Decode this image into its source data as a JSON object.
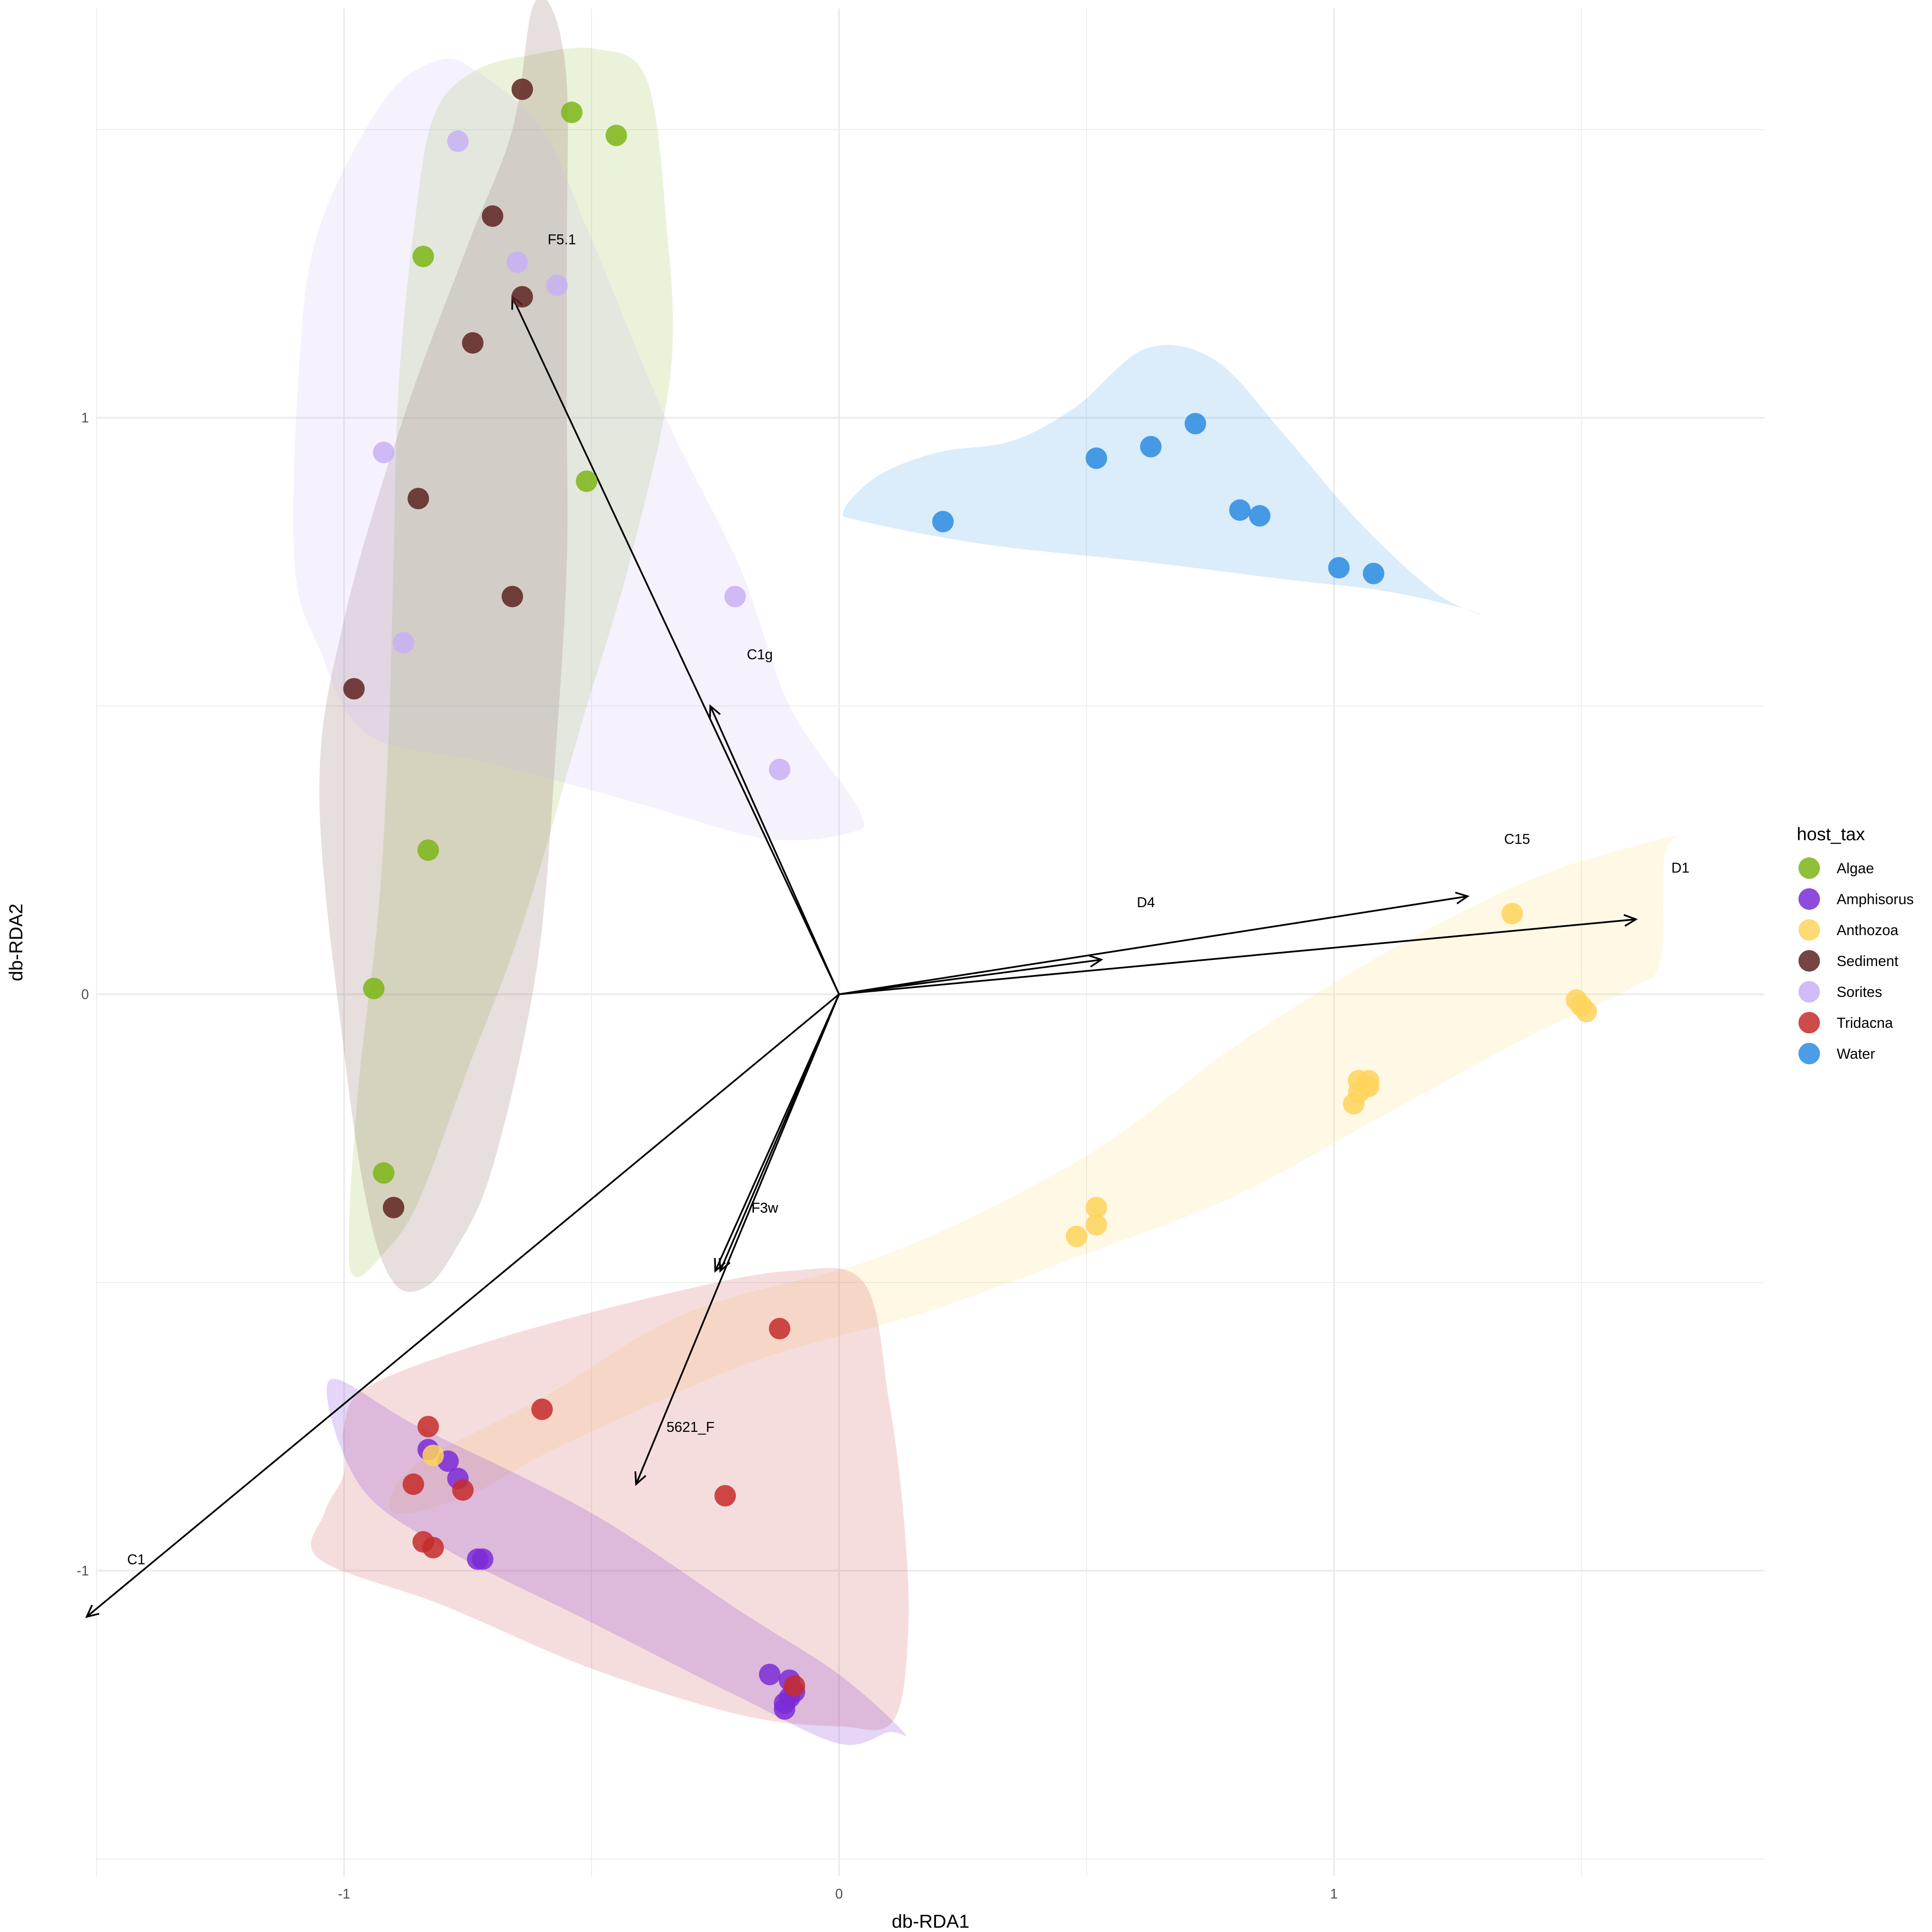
{
  "chart_data": {
    "type": "scatter",
    "title": "",
    "xlabel": "db-RDA1",
    "ylabel": "db-RDA2",
    "xlim": [
      -1.5,
      1.87
    ],
    "ylim": [
      -1.53,
      1.71
    ],
    "x_ticks": [
      -1,
      0,
      1
    ],
    "x_tick_labels": [
      "-1",
      "0",
      "1"
    ],
    "y_ticks": [
      -1,
      0,
      1
    ],
    "y_tick_labels": [
      "-1",
      "0",
      "1"
    ],
    "grid": true,
    "legend": {
      "title": "host_tax",
      "placement": "right"
    },
    "series": [
      {
        "name": "Algae",
        "color": "#7cb518",
        "points": [
          [
            -0.54,
            1.53
          ],
          [
            -0.45,
            1.49
          ],
          [
            -0.84,
            1.28
          ],
          [
            -0.51,
            0.89
          ],
          [
            -0.83,
            0.25
          ],
          [
            -0.94,
            0.01
          ],
          [
            -0.92,
            -0.31
          ]
        ]
      },
      {
        "name": "Amphisorus",
        "color": "#7b2bd6",
        "points": [
          [
            -0.83,
            -0.79
          ],
          [
            -0.79,
            -0.81
          ],
          [
            -0.77,
            -0.84
          ],
          [
            -0.73,
            -0.98
          ],
          [
            -0.72,
            -0.98
          ],
          [
            -0.14,
            -1.18
          ],
          [
            -0.1,
            -1.19
          ],
          [
            -0.1,
            -1.22
          ],
          [
            -0.11,
            -1.23
          ],
          [
            -0.11,
            -1.24
          ],
          [
            -0.09,
            -1.21
          ]
        ]
      },
      {
        "name": "Anthozoa",
        "color": "#fed45c",
        "points": [
          [
            -0.82,
            -0.8
          ],
          [
            0.48,
            -0.42
          ],
          [
            0.52,
            -0.4
          ],
          [
            0.52,
            -0.37
          ],
          [
            1.04,
            -0.19
          ],
          [
            1.05,
            -0.17
          ],
          [
            1.07,
            -0.16
          ],
          [
            1.07,
            -0.15
          ],
          [
            1.05,
            -0.15
          ],
          [
            1.36,
            0.14
          ],
          [
            1.49,
            -0.01
          ],
          [
            1.5,
            -0.02
          ],
          [
            1.51,
            -0.03
          ]
        ]
      },
      {
        "name": "Sediment",
        "color": "#5e2320",
        "points": [
          [
            -0.64,
            1.57
          ],
          [
            -0.7,
            1.35
          ],
          [
            -0.64,
            1.21
          ],
          [
            -0.74,
            1.13
          ],
          [
            -0.85,
            0.86
          ],
          [
            -0.66,
            0.69
          ],
          [
            -0.98,
            0.53
          ],
          [
            -0.9,
            -0.37
          ]
        ]
      },
      {
        "name": "Sorites",
        "color": "#c8b0f5",
        "points": [
          [
            -0.77,
            1.48
          ],
          [
            -0.65,
            1.27
          ],
          [
            -0.57,
            1.23
          ],
          [
            -0.92,
            0.94
          ],
          [
            -0.88,
            0.61
          ],
          [
            -0.21,
            0.69
          ],
          [
            -0.12,
            0.39
          ]
        ]
      },
      {
        "name": "Tridacna",
        "color": "#c62b2c",
        "points": [
          [
            -0.12,
            -0.58
          ],
          [
            -0.6,
            -0.72
          ],
          [
            -0.83,
            -0.75
          ],
          [
            -0.86,
            -0.85
          ],
          [
            -0.76,
            -0.86
          ],
          [
            -0.23,
            -0.87
          ],
          [
            -0.84,
            -0.95
          ],
          [
            -0.82,
            -0.96
          ],
          [
            -0.09,
            -1.2
          ]
        ]
      },
      {
        "name": "Water",
        "color": "#2c8ce0",
        "points": [
          [
            0.72,
            0.99
          ],
          [
            0.63,
            0.95
          ],
          [
            0.52,
            0.93
          ],
          [
            0.81,
            0.84
          ],
          [
            0.85,
            0.83
          ],
          [
            0.21,
            0.82
          ],
          [
            1.01,
            0.74
          ],
          [
            1.08,
            0.73
          ]
        ]
      }
    ],
    "vectors": [
      {
        "label": "F5.1",
        "end": [
          -0.66,
          1.21
        ],
        "label_pos": [
          -0.56,
          1.31
        ]
      },
      {
        "label": "C1g",
        "end": [
          -0.26,
          0.5
        ],
        "label_pos": [
          -0.16,
          0.59
        ]
      },
      {
        "label": "C15",
        "end": [
          1.27,
          0.17
        ],
        "label_pos": [
          1.37,
          0.27
        ]
      },
      {
        "label": "D1",
        "end": [
          1.61,
          0.13
        ],
        "label_pos": [
          1.7,
          0.22
        ]
      },
      {
        "label": "D4",
        "end": [
          0.53,
          0.06
        ],
        "label_pos": [
          0.62,
          0.16
        ]
      },
      {
        "label": "F3w",
        "end": [
          -0.25,
          -0.48
        ],
        "label_pos": [
          -0.15,
          -0.37
        ]
      },
      {
        "label": "F3w",
        "end": [
          -0.24,
          -0.48
        ],
        "label_pos": [
          -0.15,
          -0.37
        ]
      },
      {
        "label": "5621_F",
        "end": [
          -0.41,
          -0.85
        ],
        "label_pos": [
          -0.3,
          -0.75
        ]
      },
      {
        "label": "C1",
        "end": [
          -1.52,
          -1.08
        ],
        "label_pos": [
          -1.42,
          -0.98
        ]
      }
    ],
    "regions": [
      {
        "group": "Algae",
        "color": "#7cb518",
        "opacity": 0.16,
        "outline": [
          [
            -0.49,
            1.64
          ],
          [
            -0.39,
            1.59
          ],
          [
            -0.35,
            1.35
          ],
          [
            -0.34,
            1.08
          ],
          [
            -0.42,
            0.76
          ],
          [
            -0.52,
            0.47
          ],
          [
            -0.64,
            0.12
          ],
          [
            -0.75,
            -0.13
          ],
          [
            -0.85,
            -0.36
          ],
          [
            -0.92,
            -0.45
          ],
          [
            -0.98,
            -0.49
          ],
          [
            -0.99,
            -0.4
          ],
          [
            -0.97,
            -0.15
          ],
          [
            -0.93,
            0.15
          ],
          [
            -0.91,
            0.45
          ],
          [
            -0.9,
            0.75
          ],
          [
            -0.89,
            1.05
          ],
          [
            -0.86,
            1.32
          ],
          [
            -0.82,
            1.52
          ],
          [
            -0.74,
            1.6
          ],
          [
            -0.62,
            1.63
          ]
        ]
      },
      {
        "group": "Sediment",
        "color": "#5e2320",
        "opacity": 0.15,
        "outline": [
          [
            -0.58,
            1.71
          ],
          [
            -0.55,
            1.58
          ],
          [
            -0.55,
            1.3
          ],
          [
            -0.55,
            1.0
          ],
          [
            -0.55,
            0.75
          ],
          [
            -0.57,
            0.45
          ],
          [
            -0.61,
            0.05
          ],
          [
            -0.7,
            -0.3
          ],
          [
            -0.78,
            -0.45
          ],
          [
            -0.84,
            -0.51
          ],
          [
            -0.9,
            -0.5
          ],
          [
            -0.95,
            -0.38
          ],
          [
            -1.0,
            -0.1
          ],
          [
            -1.05,
            0.35
          ],
          [
            -1.0,
            0.65
          ],
          [
            -0.88,
            1.0
          ],
          [
            -0.75,
            1.3
          ],
          [
            -0.66,
            1.5
          ],
          [
            -0.62,
            1.71
          ]
        ]
      },
      {
        "group": "Sorites",
        "color": "#c8b0f5",
        "opacity": 0.18,
        "outline": [
          [
            -0.81,
            1.62
          ],
          [
            -0.73,
            1.6
          ],
          [
            -0.6,
            1.5
          ],
          [
            -0.5,
            1.31
          ],
          [
            -0.35,
            1.0
          ],
          [
            -0.2,
            0.74
          ],
          [
            -0.1,
            0.5
          ],
          [
            0.04,
            0.32
          ],
          [
            0.02,
            0.28
          ],
          [
            -0.15,
            0.27
          ],
          [
            -0.4,
            0.33
          ],
          [
            -0.7,
            0.4
          ],
          [
            -0.95,
            0.45
          ],
          [
            -1.05,
            0.6
          ],
          [
            -1.1,
            0.75
          ],
          [
            -1.09,
            1.1
          ],
          [
            -1.05,
            1.33
          ],
          [
            -0.92,
            1.55
          ]
        ]
      },
      {
        "group": "Water",
        "color": "#2c8ce0",
        "opacity": 0.17,
        "outline": [
          [
            0.62,
            1.12
          ],
          [
            0.76,
            1.1
          ],
          [
            0.9,
            0.97
          ],
          [
            1.05,
            0.82
          ],
          [
            1.2,
            0.7
          ],
          [
            1.29,
            0.66
          ],
          [
            1.26,
            0.67
          ],
          [
            1.1,
            0.7
          ],
          [
            0.9,
            0.72
          ],
          [
            0.62,
            0.75
          ],
          [
            0.3,
            0.78
          ],
          [
            0.05,
            0.82
          ],
          [
            0.01,
            0.84
          ],
          [
            0.08,
            0.9
          ],
          [
            0.2,
            0.94
          ],
          [
            0.35,
            0.96
          ],
          [
            0.48,
            1.02
          ]
        ]
      },
      {
        "group": "Anthozoa",
        "color": "#fed45c",
        "opacity": 0.16,
        "outline": [
          [
            1.73,
            0.28
          ],
          [
            1.67,
            0.25
          ],
          [
            1.66,
            0.06
          ],
          [
            1.6,
            0.01
          ],
          [
            1.4,
            -0.07
          ],
          [
            1.1,
            -0.21
          ],
          [
            0.8,
            -0.35
          ],
          [
            0.5,
            -0.45
          ],
          [
            0.18,
            -0.55
          ],
          [
            -0.15,
            -0.63
          ],
          [
            -0.4,
            -0.72
          ],
          [
            -0.6,
            -0.8
          ],
          [
            -0.75,
            -0.87
          ],
          [
            -0.9,
            -0.9
          ],
          [
            -0.86,
            -0.82
          ],
          [
            -0.6,
            -0.7
          ],
          [
            -0.3,
            -0.55
          ],
          [
            0.1,
            -0.45
          ],
          [
            0.5,
            -0.28
          ],
          [
            0.8,
            -0.09
          ],
          [
            1.1,
            0.07
          ],
          [
            1.4,
            0.2
          ],
          [
            1.62,
            0.26
          ]
        ]
      },
      {
        "group": "Tridacna",
        "color": "#c62b2c",
        "opacity": 0.16,
        "outline": [
          [
            0.1,
            -0.7
          ],
          [
            0.13,
            -0.9
          ],
          [
            0.14,
            -1.1
          ],
          [
            0.11,
            -1.26
          ],
          [
            0.0,
            -1.27
          ],
          [
            -0.2,
            -1.25
          ],
          [
            -0.5,
            -1.17
          ],
          [
            -0.8,
            -1.06
          ],
          [
            -1.05,
            -0.98
          ],
          [
            -1.04,
            -0.9
          ],
          [
            -1.0,
            -0.83
          ],
          [
            -1.0,
            -0.75
          ],
          [
            -0.95,
            -0.68
          ],
          [
            -0.7,
            -0.6
          ],
          [
            -0.35,
            -0.52
          ],
          [
            -0.1,
            -0.48
          ],
          [
            0.05,
            -0.5
          ]
        ]
      },
      {
        "group": "Amphisorus",
        "color": "#7b2bd6",
        "opacity": 0.2,
        "outline": [
          [
            -1.03,
            -0.67
          ],
          [
            -0.85,
            -0.75
          ],
          [
            -0.5,
            -0.9
          ],
          [
            -0.2,
            -1.07
          ],
          [
            0.0,
            -1.18
          ],
          [
            0.13,
            -1.28
          ],
          [
            0.1,
            -1.28
          ],
          [
            0.0,
            -1.3
          ],
          [
            -0.2,
            -1.22
          ],
          [
            -0.5,
            -1.09
          ],
          [
            -0.8,
            -0.96
          ],
          [
            -0.97,
            -0.85
          ]
        ]
      }
    ]
  }
}
